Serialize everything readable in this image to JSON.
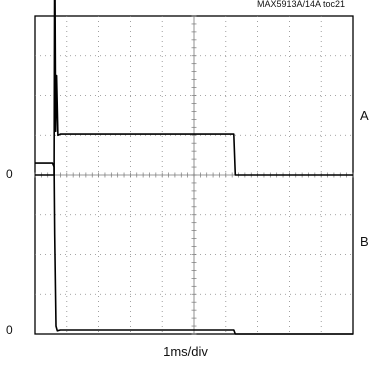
{
  "chart_data": {
    "type": "line",
    "title": "MAX5913A/14A toc21",
    "xlabel": "1ms/div",
    "ylabel": "",
    "grid": true,
    "x_divisions": 10,
    "y_divisions": 8,
    "zero_label": "0",
    "series": [
      {
        "name": "A",
        "color": "#000000",
        "x": [
          0,
          0.55,
          0.6,
          0.62,
          0.65,
          0.68,
          0.72,
          0.8,
          6.25,
          6.3,
          6.35,
          10
        ],
        "y": [
          0,
          0,
          0,
          6.3,
          1.1,
          2.5,
          1.0,
          1.03,
          1.03,
          0,
          0,
          0
        ]
      },
      {
        "name": "B",
        "color": "#000000",
        "x": [
          0,
          0.55,
          0.6,
          0.62,
          0.66,
          0.7,
          0.8,
          6.25,
          6.3,
          6.35,
          10
        ],
        "y": [
          4.3,
          4.3,
          4.2,
          2.5,
          0.2,
          0.08,
          0.1,
          0.1,
          0,
          0,
          0
        ]
      }
    ]
  }
}
